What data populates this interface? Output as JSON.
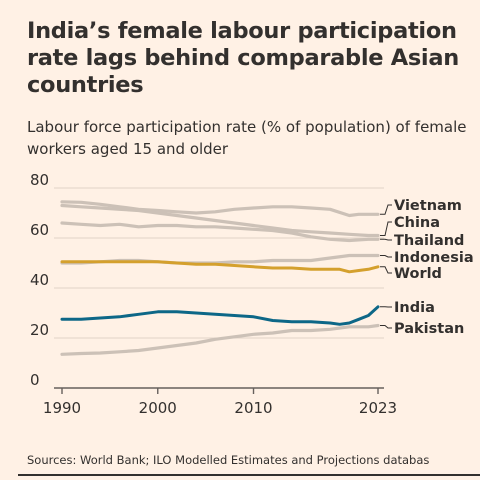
{
  "header": {
    "title": "India’s female labour participation rate lags behind comparable Asian countries",
    "subtitle": "Labour force participation rate (% of population) of female workers aged 15 and older"
  },
  "footer": {
    "source": "Sources: World Bank; ILO Modelled Estimates and Projections databas"
  },
  "colors": {
    "background": "#fff1e5",
    "grey_series": "#ccc1b7",
    "world": "#d4a02d",
    "india": "#0d6787",
    "text": "#33302e"
  },
  "chart_data": {
    "type": "line",
    "title": "India’s female labour participation rate lags behind comparable Asian countries",
    "subtitle": "Labour force participation rate (% of population) of female workers aged 15 and older",
    "xlabel": "",
    "ylabel": "",
    "xlim": [
      1990,
      2023
    ],
    "ylim": [
      0,
      80
    ],
    "x_ticks": [
      "1990",
      "2000",
      "2010",
      "2023"
    ],
    "y_ticks": [
      "0",
      "20",
      "40",
      "60",
      "80"
    ],
    "grid": true,
    "legend": "direct labels at right",
    "series": [
      {
        "name": "Vietnam",
        "color": "#ccc1b7",
        "x": [
          1990,
          1992,
          1994,
          1996,
          1998,
          2000,
          2002,
          2004,
          2006,
          2008,
          2010,
          2012,
          2014,
          2016,
          2018,
          2020,
          2021,
          2022,
          2023
        ],
        "values": [
          74.5,
          74.3,
          73.5,
          72.5,
          71.5,
          71.0,
          70.5,
          70.0,
          70.5,
          71.5,
          72.0,
          72.5,
          72.5,
          72.0,
          71.5,
          69.0,
          69.5,
          69.5,
          69.5
        ]
      },
      {
        "name": "China",
        "color": "#ccc1b7",
        "x": [
          1990,
          1992,
          1994,
          1996,
          1998,
          2000,
          2002,
          2004,
          2006,
          2008,
          2010,
          2012,
          2014,
          2016,
          2018,
          2020,
          2022,
          2023
        ],
        "values": [
          73.0,
          72.5,
          72.0,
          71.5,
          71.0,
          70.0,
          69.0,
          68.0,
          67.0,
          66.0,
          65.0,
          64.0,
          63.0,
          62.5,
          62.0,
          61.5,
          61.0,
          61.0
        ]
      },
      {
        "name": "Thailand",
        "color": "#ccc1b7",
        "x": [
          1990,
          1992,
          1994,
          1996,
          1998,
          2000,
          2002,
          2004,
          2006,
          2008,
          2010,
          2012,
          2014,
          2016,
          2018,
          2020,
          2022,
          2023
        ],
        "values": [
          66.0,
          65.5,
          65.0,
          65.5,
          64.5,
          65.0,
          65.0,
          64.5,
          64.5,
          64.0,
          63.5,
          63.0,
          62.0,
          60.5,
          59.5,
          59.0,
          59.5,
          59.5
        ]
      },
      {
        "name": "Indonesia",
        "color": "#ccc1b7",
        "x": [
          1990,
          1992,
          1994,
          1996,
          1998,
          2000,
          2002,
          2004,
          2006,
          2008,
          2010,
          2012,
          2014,
          2016,
          2018,
          2020,
          2022,
          2023
        ],
        "values": [
          50.0,
          50.0,
          50.5,
          51.0,
          51.0,
          50.5,
          50.0,
          50.0,
          50.0,
          50.5,
          50.5,
          51.0,
          51.0,
          51.0,
          52.0,
          53.0,
          53.0,
          53.0
        ]
      },
      {
        "name": "World",
        "color": "#d4a02d",
        "x": [
          1990,
          1992,
          1994,
          1996,
          1998,
          2000,
          2002,
          2004,
          2006,
          2008,
          2010,
          2012,
          2014,
          2016,
          2018,
          2019,
          2020,
          2021,
          2022,
          2023
        ],
        "values": [
          50.5,
          50.5,
          50.5,
          50.5,
          50.5,
          50.5,
          50.0,
          49.5,
          49.5,
          49.0,
          48.5,
          48.0,
          48.0,
          47.5,
          47.5,
          47.5,
          46.5,
          47.0,
          47.5,
          48.5
        ]
      },
      {
        "name": "India",
        "color": "#0d6787",
        "x": [
          1990,
          1992,
          1994,
          1996,
          1998,
          2000,
          2002,
          2004,
          2006,
          2008,
          2010,
          2012,
          2014,
          2016,
          2018,
          2019,
          2020,
          2021,
          2022,
          2023
        ],
        "values": [
          27.5,
          27.5,
          28.0,
          28.5,
          29.5,
          30.5,
          30.5,
          30.0,
          29.5,
          29.0,
          28.5,
          27.0,
          26.5,
          26.5,
          26.0,
          25.5,
          26.0,
          27.5,
          29.0,
          32.5
        ]
      },
      {
        "name": "Pakistan",
        "color": "#ccc1b7",
        "x": [
          1990,
          1992,
          1994,
          1996,
          1998,
          2000,
          2002,
          2004,
          2006,
          2008,
          2010,
          2012,
          2014,
          2016,
          2018,
          2020,
          2022,
          2023
        ],
        "values": [
          13.5,
          13.8,
          14.0,
          14.5,
          15.0,
          16.0,
          17.0,
          18.0,
          19.5,
          20.5,
          21.5,
          22.0,
          23.0,
          23.0,
          23.5,
          24.5,
          24.5,
          25.0
        ]
      }
    ],
    "end_labels": [
      {
        "series": "Vietnam",
        "text": "Vietnam"
      },
      {
        "series": "China",
        "text": "China"
      },
      {
        "series": "Thailand",
        "text": "Thailand"
      },
      {
        "series": "Indonesia",
        "text": "Indonesia"
      },
      {
        "series": "World",
        "text": "World"
      },
      {
        "series": "India",
        "text": "India"
      },
      {
        "series": "Pakistan",
        "text": "Pakistan"
      }
    ]
  }
}
